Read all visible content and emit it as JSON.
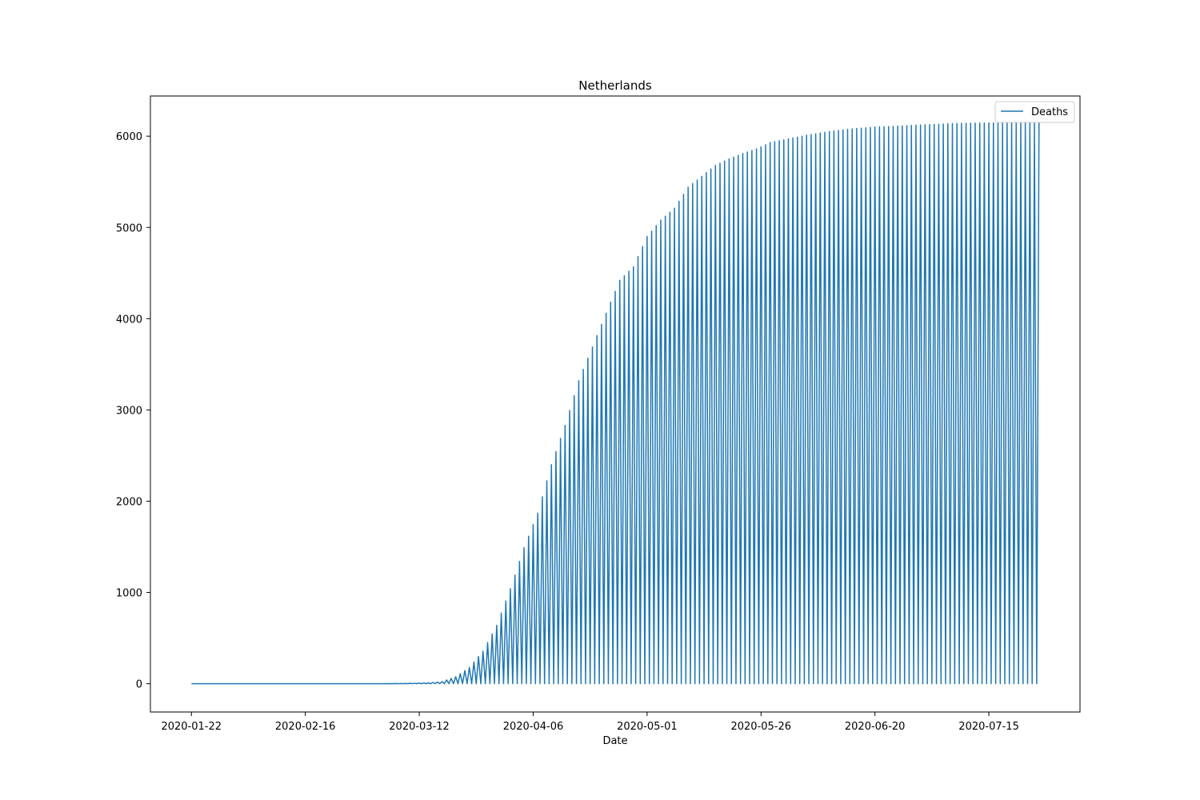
{
  "chart_data": {
    "type": "line",
    "title": "Netherlands",
    "xlabel": "Date",
    "ylabel": "",
    "x_tick_labels": [
      "2020-01-22",
      "2020-02-16",
      "2020-03-12",
      "2020-04-06",
      "2020-05-01",
      "2020-05-26",
      "2020-06-20",
      "2020-07-15"
    ],
    "y_tick_labels": [
      "0",
      "1000",
      "2000",
      "3000",
      "4000",
      "5000",
      "6000"
    ],
    "y_ticks": [
      0,
      1000,
      2000,
      3000,
      4000,
      5000,
      6000
    ],
    "x_range": [
      "2020-01-13",
      "2020-08-04"
    ],
    "ylim": [
      -310,
      6440
    ],
    "grid": false,
    "legend_position": "top-right",
    "series": [
      {
        "name": "Deaths",
        "color": "#1f77b4",
        "note_pattern": "line returns to 0 between consecutive daily values",
        "points": [
          [
            "2020-01-22",
            0
          ],
          [
            "2020-03-01",
            0
          ],
          [
            "2020-03-06",
            1
          ],
          [
            "2020-03-11",
            5
          ],
          [
            "2020-03-14",
            10
          ],
          [
            "2020-03-17",
            24
          ],
          [
            "2020-03-20",
            76
          ],
          [
            "2020-03-23",
            179
          ],
          [
            "2020-03-26",
            356
          ],
          [
            "2020-03-29",
            640
          ],
          [
            "2020-04-01",
            1040
          ],
          [
            "2020-04-04",
            1490
          ],
          [
            "2020-04-07",
            1870
          ],
          [
            "2020-04-10",
            2400
          ],
          [
            "2020-04-13",
            2830
          ],
          [
            "2020-04-16",
            3320
          ],
          [
            "2020-04-19",
            3690
          ],
          [
            "2020-04-22",
            4060
          ],
          [
            "2020-04-25",
            4420
          ],
          [
            "2020-04-28",
            4570
          ],
          [
            "2020-05-01",
            4900
          ],
          [
            "2020-05-04",
            5080
          ],
          [
            "2020-05-07",
            5210
          ],
          [
            "2020-05-10",
            5440
          ],
          [
            "2020-05-13",
            5560
          ],
          [
            "2020-05-16",
            5680
          ],
          [
            "2020-05-19",
            5750
          ],
          [
            "2020-05-22",
            5810
          ],
          [
            "2020-05-25",
            5860
          ],
          [
            "2020-05-28",
            5930
          ],
          [
            "2020-06-01",
            5970
          ],
          [
            "2020-06-05",
            6010
          ],
          [
            "2020-06-10",
            6050
          ],
          [
            "2020-06-15",
            6080
          ],
          [
            "2020-06-20",
            6100
          ],
          [
            "2020-06-25",
            6110
          ],
          [
            "2020-07-01",
            6125
          ],
          [
            "2020-07-08",
            6140
          ],
          [
            "2020-07-15",
            6145
          ],
          [
            "2020-07-22",
            6150
          ],
          [
            "2020-07-26",
            6150
          ]
        ]
      }
    ]
  }
}
